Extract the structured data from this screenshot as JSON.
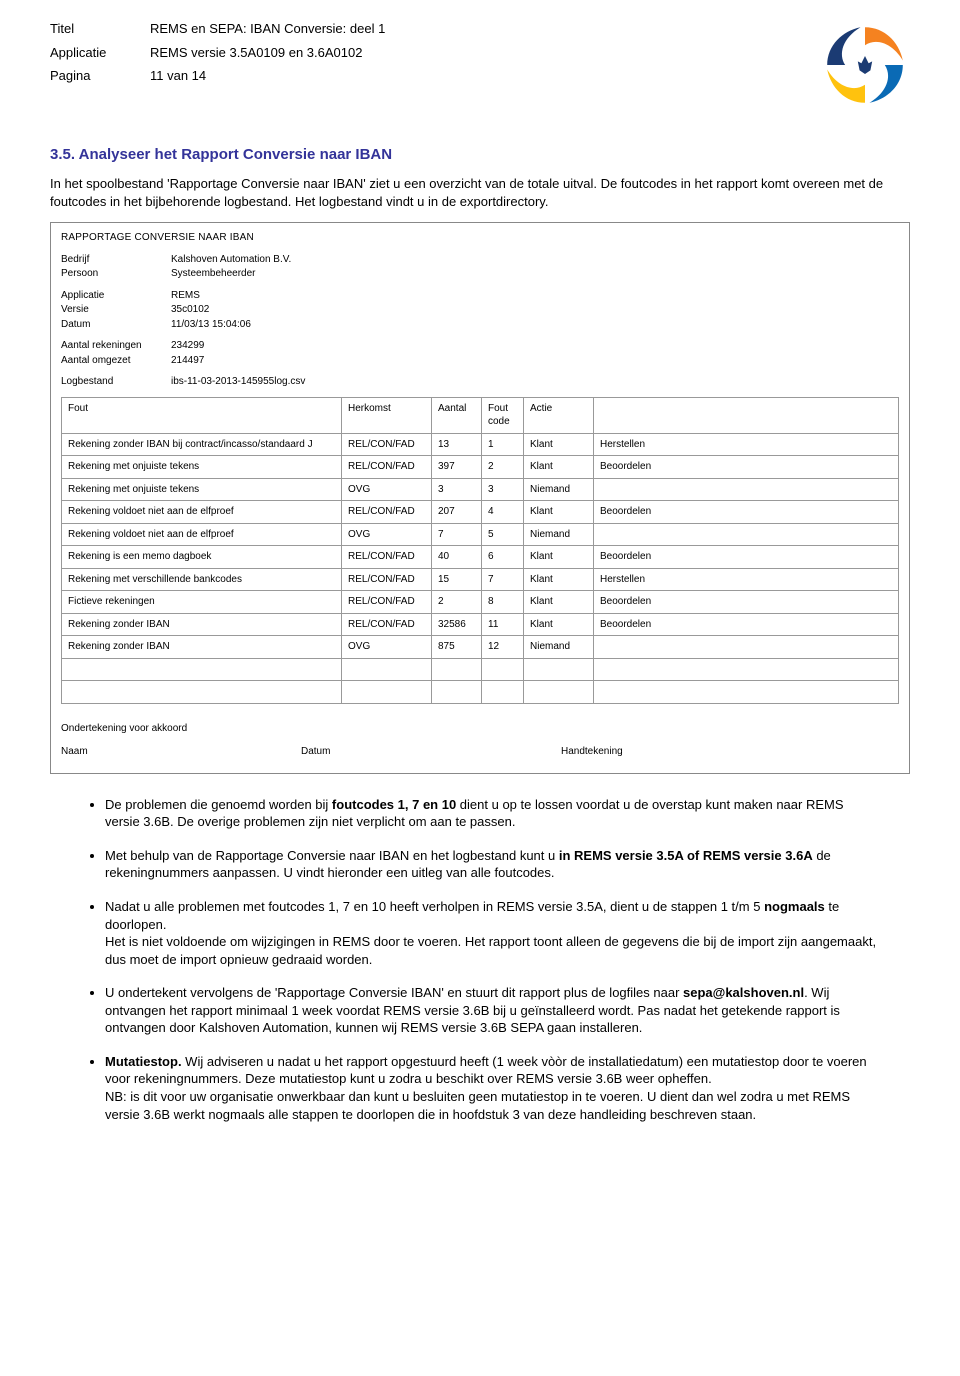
{
  "header": {
    "labels": {
      "title": "Titel",
      "app": "Applicatie",
      "page": "Pagina"
    },
    "title_value": "REMS en SEPA: IBAN Conversie: deel 1",
    "app_value": "REMS versie 3.5A0109 en 3.6A0102",
    "page_value": "11 van 14"
  },
  "section": {
    "number": "3.5.",
    "title": "Analyseer het Rapport Conversie naar IBAN"
  },
  "intro": {
    "p1": "In het spoolbestand 'Rapportage Conversie naar IBAN' ziet u een overzicht van de totale uitval. De foutcodes in het rapport komt overeen met de foutcodes in het bijbehorende logbestand. Het logbestand vindt u in de exportdirectory."
  },
  "report": {
    "title": "RAPPORTAGE CONVERSIE NAAR IBAN",
    "meta1": [
      [
        "Bedrijf",
        "Kalshoven Automation B.V."
      ],
      [
        "Persoon",
        "Systeembeheerder"
      ]
    ],
    "meta2": [
      [
        "Applicatie",
        "REMS"
      ],
      [
        "Versie",
        "35c0102"
      ],
      [
        "Datum",
        "11/03/13 15:04:06"
      ]
    ],
    "meta3": [
      [
        "Aantal rekeningen",
        "234299"
      ],
      [
        "Aantal omgezet",
        "214497"
      ]
    ],
    "meta4": [
      [
        "Logbestand",
        "ibs-11-03-2013-145955log.csv"
      ]
    ],
    "columns": [
      "Fout",
      "Herkomst",
      "Aantal",
      "Fout code",
      "Actie",
      ""
    ],
    "rows": [
      [
        "Rekening zonder IBAN bij contract/incasso/standaard J",
        "REL/CON/FAD",
        "13",
        "1",
        "Klant",
        "Herstellen"
      ],
      [
        "Rekening met onjuiste tekens",
        "REL/CON/FAD",
        "397",
        "2",
        "Klant",
        "Beoordelen"
      ],
      [
        "Rekening met onjuiste tekens",
        "OVG",
        "3",
        "3",
        "Niemand",
        ""
      ],
      [
        "Rekening voldoet niet aan de elfproef",
        "REL/CON/FAD",
        "207",
        "4",
        "Klant",
        "Beoordelen"
      ],
      [
        "Rekening voldoet niet aan de elfproef",
        "OVG",
        "7",
        "5",
        "Niemand",
        ""
      ],
      [
        "Rekening is een memo dagboek",
        "REL/CON/FAD",
        "40",
        "6",
        "Klant",
        "Beoordelen"
      ],
      [
        "Rekening met verschillende bankcodes",
        "REL/CON/FAD",
        "15",
        "7",
        "Klant",
        "Herstellen"
      ],
      [
        "Fictieve rekeningen",
        "REL/CON/FAD",
        "2",
        "8",
        "Klant",
        "Beoordelen"
      ],
      [
        "Rekening zonder IBAN",
        "REL/CON/FAD",
        "32586",
        "11",
        "Klant",
        "Beoordelen"
      ],
      [
        "Rekening zonder IBAN",
        "OVG",
        "875",
        "12",
        "Niemand",
        ""
      ],
      [
        "",
        "",
        "",
        "",
        "",
        ""
      ],
      [
        "",
        "",
        "",
        "",
        "",
        ""
      ]
    ],
    "sign": {
      "heading": "Ondertekening voor akkoord",
      "naam": "Naam",
      "datum": "Datum",
      "handtekening": "Handtekening"
    }
  },
  "bullets": {
    "b1a": "De problemen die genoemd worden bij ",
    "b1b": "foutcodes 1, 7 en 10",
    "b1c": " dient u op te lossen voordat u de overstap kunt maken naar REMS versie 3.6B. De overige problemen zijn niet verplicht om aan te passen.",
    "b2a": "Met behulp van de Rapportage Conversie naar IBAN en het logbestand kunt u ",
    "b2b": "in REMS versie 3.5A of REMS versie 3.6A",
    "b2c": " de rekeningnummers aanpassen. U vindt hieronder een uitleg van alle foutcodes.",
    "b3a": "Nadat u alle problemen met foutcodes 1, 7 en 10 heeft verholpen in REMS versie 3.5A, dient u de stappen 1 t/m 5 ",
    "b3b": "nogmaals",
    "b3c": " te doorlopen.",
    "b3d": "Het is niet voldoende om wijzigingen in REMS door te voeren. Het rapport toont alleen de gegevens die bij de import zijn aangemaakt, dus moet de import opnieuw gedraaid worden.",
    "b4a": "U ondertekent vervolgens de 'Rapportage Conversie IBAN' en stuurt dit rapport plus de logfiles naar ",
    "b4b": "sepa@kalshoven.nl",
    "b4c": ". Wij ontvangen het rapport minimaal 1 week voordat REMS versie 3.6B bij u geïnstalleerd wordt. Pas nadat het getekende rapport is ontvangen door Kalshoven Automation, kunnen wij REMS versie 3.6B SEPA gaan installeren.",
    "b5a": "Mutatiestop.",
    "b5b": " Wij adviseren u nadat u het rapport opgestuurd heeft (1 week vòòr de installatiedatum) een mutatiestop door te voeren voor rekeningnummers. Deze mutatiestop kunt u zodra u beschikt over REMS versie 3.6B weer opheffen.",
    "b5c": "NB: is dit voor uw organisatie onwerkbaar dan kunt u besluiten geen mutatiestop in te voeren. U dient dan wel zodra u met REMS versie 3.6B werkt nogmaals alle stappen te doorlopen die in hoofdstuk 3 van deze handleiding beschreven staan."
  },
  "colors": {
    "heading": "#333399",
    "border": "#888888",
    "sw_orange": "#f58220",
    "sw_blue": "#0a6ab5",
    "sw_yellow": "#ffc20e",
    "sw_navy": "#1b3b73"
  }
}
